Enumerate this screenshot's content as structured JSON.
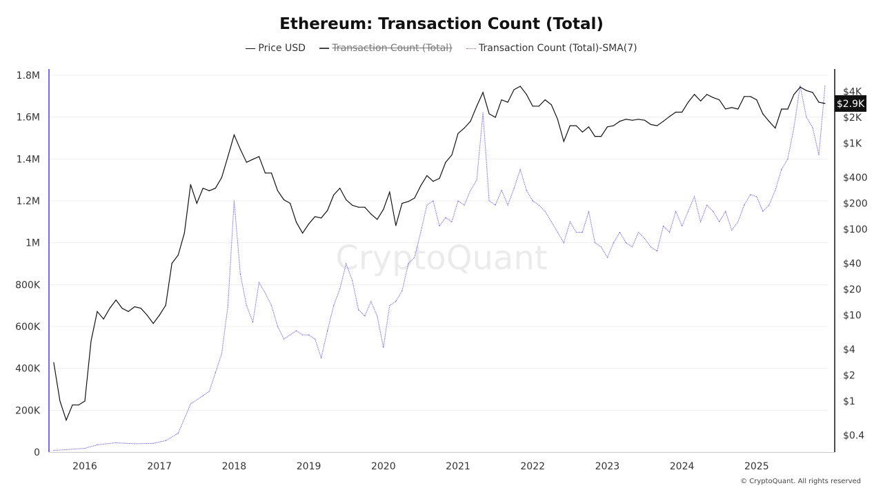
{
  "chart_data": {
    "type": "line",
    "title": "Ethereum: Transaction Count (Total)",
    "legend": {
      "placement": "top-center",
      "items": [
        {
          "label": "Price USD",
          "color": "#111111",
          "style": "solid",
          "hidden": false
        },
        {
          "label": "Transaction Count (Total)",
          "color": "#444444",
          "style": "solid",
          "hidden": true
        },
        {
          "label": "Transaction Count (Total)-SMA(7)",
          "color": "#7b68ee",
          "style": "dotted",
          "hidden": false
        }
      ]
    },
    "x_axis": {
      "type": "date",
      "range": [
        "2015-08",
        "2025-12"
      ],
      "ticks": [
        "2016",
        "2017",
        "2018",
        "2019",
        "2020",
        "2021",
        "2022",
        "2023",
        "2024",
        "2025"
      ]
    },
    "y_left": {
      "range": [
        0,
        1800000
      ],
      "ticks": [
        0,
        200000,
        400000,
        600000,
        800000,
        1000000,
        1200000,
        1400000,
        1600000,
        1800000
      ],
      "tick_labels": [
        "0",
        "200K",
        "400K",
        "600K",
        "800K",
        "1M",
        "1.2M",
        "1.4M",
        "1.6M",
        "1.8M"
      ],
      "grid": true
    },
    "y_right": {
      "scale": "log",
      "ticks": [
        0.4,
        1,
        2,
        4,
        10,
        20,
        40,
        100,
        200,
        400,
        1000,
        2000,
        4000
      ],
      "tick_labels": [
        "$0.4",
        "$1",
        "$2",
        "$4",
        "$10",
        "$20",
        "$40",
        "$100",
        "$200",
        "$400",
        "$1K",
        "$2K",
        "$4K"
      ]
    },
    "current_price_label": "$2.9K",
    "series": [
      {
        "name": "Price USD",
        "axis": "right",
        "color": "#111111",
        "points": [
          [
            "2015-08",
            2.8
          ],
          [
            "2015-09",
            1.0
          ],
          [
            "2015-10",
            0.6
          ],
          [
            "2015-11",
            0.9
          ],
          [
            "2015-12",
            0.9
          ],
          [
            "2016-01",
            1.0
          ],
          [
            "2016-02",
            5
          ],
          [
            "2016-03",
            11
          ],
          [
            "2016-04",
            9
          ],
          [
            "2016-05",
            12
          ],
          [
            "2016-06",
            15
          ],
          [
            "2016-07",
            12
          ],
          [
            "2016-08",
            11
          ],
          [
            "2016-09",
            12.5
          ],
          [
            "2016-10",
            12
          ],
          [
            "2016-11",
            10
          ],
          [
            "2016-12",
            8
          ],
          [
            "2017-01",
            10
          ],
          [
            "2017-02",
            13
          ],
          [
            "2017-03",
            40
          ],
          [
            "2017-04",
            50
          ],
          [
            "2017-05",
            90
          ],
          [
            "2017-06",
            330
          ],
          [
            "2017-07",
            200
          ],
          [
            "2017-08",
            300
          ],
          [
            "2017-09",
            280
          ],
          [
            "2017-10",
            300
          ],
          [
            "2017-11",
            400
          ],
          [
            "2017-12",
            700
          ],
          [
            "2018-01",
            1250
          ],
          [
            "2018-02",
            850
          ],
          [
            "2018-03",
            600
          ],
          [
            "2018-04",
            650
          ],
          [
            "2018-05",
            700
          ],
          [
            "2018-06",
            450
          ],
          [
            "2018-07",
            450
          ],
          [
            "2018-08",
            280
          ],
          [
            "2018-09",
            220
          ],
          [
            "2018-10",
            200
          ],
          [
            "2018-11",
            120
          ],
          [
            "2018-12",
            90
          ],
          [
            "2019-01",
            115
          ],
          [
            "2019-02",
            140
          ],
          [
            "2019-03",
            135
          ],
          [
            "2019-04",
            165
          ],
          [
            "2019-05",
            250
          ],
          [
            "2019-06",
            300
          ],
          [
            "2019-07",
            220
          ],
          [
            "2019-08",
            190
          ],
          [
            "2019-09",
            180
          ],
          [
            "2019-10",
            180
          ],
          [
            "2019-11",
            150
          ],
          [
            "2019-12",
            130
          ],
          [
            "2020-01",
            170
          ],
          [
            "2020-02",
            270
          ],
          [
            "2020-03",
            110
          ],
          [
            "2020-04",
            200
          ],
          [
            "2020-05",
            210
          ],
          [
            "2020-06",
            230
          ],
          [
            "2020-07",
            320
          ],
          [
            "2020-08",
            420
          ],
          [
            "2020-09",
            360
          ],
          [
            "2020-10",
            390
          ],
          [
            "2020-11",
            600
          ],
          [
            "2020-12",
            730
          ],
          [
            "2021-01",
            1300
          ],
          [
            "2021-02",
            1500
          ],
          [
            "2021-03",
            1800
          ],
          [
            "2021-04",
            2700
          ],
          [
            "2021-05",
            3900
          ],
          [
            "2021-06",
            2200
          ],
          [
            "2021-07",
            2000
          ],
          [
            "2021-08",
            3200
          ],
          [
            "2021-09",
            3000
          ],
          [
            "2021-10",
            4200
          ],
          [
            "2021-11",
            4600
          ],
          [
            "2021-12",
            3700
          ],
          [
            "2022-01",
            2700
          ],
          [
            "2022-02",
            2700
          ],
          [
            "2022-03",
            3200
          ],
          [
            "2022-04",
            2800
          ],
          [
            "2022-05",
            1900
          ],
          [
            "2022-06",
            1050
          ],
          [
            "2022-07",
            1600
          ],
          [
            "2022-08",
            1600
          ],
          [
            "2022-09",
            1350
          ],
          [
            "2022-10",
            1550
          ],
          [
            "2022-11",
            1200
          ],
          [
            "2022-12",
            1200
          ],
          [
            "2023-01",
            1550
          ],
          [
            "2023-02",
            1600
          ],
          [
            "2023-03",
            1800
          ],
          [
            "2023-04",
            1900
          ],
          [
            "2023-05",
            1850
          ],
          [
            "2023-06",
            1900
          ],
          [
            "2023-07",
            1850
          ],
          [
            "2023-08",
            1650
          ],
          [
            "2023-09",
            1600
          ],
          [
            "2023-10",
            1800
          ],
          [
            "2023-11",
            2050
          ],
          [
            "2023-12",
            2300
          ],
          [
            "2024-01",
            2300
          ],
          [
            "2024-02",
            3000
          ],
          [
            "2024-03",
            3700
          ],
          [
            "2024-04",
            3100
          ],
          [
            "2024-05",
            3700
          ],
          [
            "2024-06",
            3400
          ],
          [
            "2024-07",
            3200
          ],
          [
            "2024-08",
            2500
          ],
          [
            "2024-09",
            2600
          ],
          [
            "2024-10",
            2500
          ],
          [
            "2024-11",
            3500
          ],
          [
            "2024-12",
            3500
          ],
          [
            "2025-01",
            3200
          ],
          [
            "2025-02",
            2200
          ],
          [
            "2025-03",
            1800
          ],
          [
            "2025-04",
            1500
          ],
          [
            "2025-05",
            2500
          ],
          [
            "2025-06",
            2500
          ],
          [
            "2025-07",
            3700
          ],
          [
            "2025-08",
            4500
          ],
          [
            "2025-09",
            4100
          ],
          [
            "2025-10",
            3900
          ],
          [
            "2025-11",
            3000
          ],
          [
            "2025-12",
            2900
          ]
        ]
      },
      {
        "name": "Transaction Count (Total)-SMA(7)",
        "axis": "left",
        "color": "#7b68ee",
        "points": [
          [
            "2015-08",
            8000
          ],
          [
            "2015-10",
            12000
          ],
          [
            "2016-01",
            18000
          ],
          [
            "2016-03",
            35000
          ],
          [
            "2016-06",
            45000
          ],
          [
            "2016-09",
            40000
          ],
          [
            "2016-12",
            42000
          ],
          [
            "2017-02",
            55000
          ],
          [
            "2017-04",
            90000
          ],
          [
            "2017-06",
            230000
          ],
          [
            "2017-08",
            270000
          ],
          [
            "2017-09",
            290000
          ],
          [
            "2017-10",
            380000
          ],
          [
            "2017-11",
            470000
          ],
          [
            "2017-12",
            700000
          ],
          [
            "2018-01",
            1200000
          ],
          [
            "2018-02",
            850000
          ],
          [
            "2018-03",
            700000
          ],
          [
            "2018-04",
            620000
          ],
          [
            "2018-05",
            810000
          ],
          [
            "2018-06",
            760000
          ],
          [
            "2018-07",
            700000
          ],
          [
            "2018-08",
            600000
          ],
          [
            "2018-09",
            540000
          ],
          [
            "2018-10",
            560000
          ],
          [
            "2018-11",
            580000
          ],
          [
            "2018-12",
            560000
          ],
          [
            "2019-01",
            560000
          ],
          [
            "2019-02",
            540000
          ],
          [
            "2019-03",
            450000
          ],
          [
            "2019-04",
            580000
          ],
          [
            "2019-05",
            700000
          ],
          [
            "2019-06",
            780000
          ],
          [
            "2019-07",
            900000
          ],
          [
            "2019-08",
            820000
          ],
          [
            "2019-09",
            680000
          ],
          [
            "2019-10",
            650000
          ],
          [
            "2019-11",
            720000
          ],
          [
            "2019-12",
            650000
          ],
          [
            "2020-01",
            500000
          ],
          [
            "2020-02",
            700000
          ],
          [
            "2020-03",
            720000
          ],
          [
            "2020-04",
            770000
          ],
          [
            "2020-05",
            900000
          ],
          [
            "2020-06",
            930000
          ],
          [
            "2020-07",
            1050000
          ],
          [
            "2020-08",
            1180000
          ],
          [
            "2020-09",
            1200000
          ],
          [
            "2020-10",
            1080000
          ],
          [
            "2020-11",
            1120000
          ],
          [
            "2020-12",
            1100000
          ],
          [
            "2021-01",
            1200000
          ],
          [
            "2021-02",
            1180000
          ],
          [
            "2021-03",
            1250000
          ],
          [
            "2021-04",
            1300000
          ],
          [
            "2021-05",
            1620000
          ],
          [
            "2021-06",
            1200000
          ],
          [
            "2021-07",
            1180000
          ],
          [
            "2021-08",
            1250000
          ],
          [
            "2021-09",
            1180000
          ],
          [
            "2021-10",
            1260000
          ],
          [
            "2021-11",
            1350000
          ],
          [
            "2021-12",
            1250000
          ],
          [
            "2022-01",
            1200000
          ],
          [
            "2022-02",
            1180000
          ],
          [
            "2022-03",
            1150000
          ],
          [
            "2022-04",
            1100000
          ],
          [
            "2022-05",
            1050000
          ],
          [
            "2022-06",
            1000000
          ],
          [
            "2022-07",
            1100000
          ],
          [
            "2022-08",
            1050000
          ],
          [
            "2022-09",
            1050000
          ],
          [
            "2022-10",
            1150000
          ],
          [
            "2022-11",
            1000000
          ],
          [
            "2022-12",
            980000
          ],
          [
            "2023-01",
            930000
          ],
          [
            "2023-02",
            1000000
          ],
          [
            "2023-03",
            1050000
          ],
          [
            "2023-04",
            1000000
          ],
          [
            "2023-05",
            980000
          ],
          [
            "2023-06",
            1050000
          ],
          [
            "2023-07",
            1020000
          ],
          [
            "2023-08",
            980000
          ],
          [
            "2023-09",
            960000
          ],
          [
            "2023-10",
            1080000
          ],
          [
            "2023-11",
            1050000
          ],
          [
            "2023-12",
            1150000
          ],
          [
            "2024-01",
            1080000
          ],
          [
            "2024-02",
            1150000
          ],
          [
            "2024-03",
            1220000
          ],
          [
            "2024-04",
            1100000
          ],
          [
            "2024-05",
            1180000
          ],
          [
            "2024-06",
            1150000
          ],
          [
            "2024-07",
            1100000
          ],
          [
            "2024-08",
            1150000
          ],
          [
            "2024-09",
            1060000
          ],
          [
            "2024-10",
            1100000
          ],
          [
            "2024-11",
            1180000
          ],
          [
            "2024-12",
            1230000
          ],
          [
            "2025-01",
            1220000
          ],
          [
            "2025-02",
            1150000
          ],
          [
            "2025-03",
            1180000
          ],
          [
            "2025-04",
            1250000
          ],
          [
            "2025-05",
            1350000
          ],
          [
            "2025-06",
            1400000
          ],
          [
            "2025-07",
            1550000
          ],
          [
            "2025-08",
            1750000
          ],
          [
            "2025-09",
            1600000
          ],
          [
            "2025-10",
            1550000
          ],
          [
            "2025-11",
            1420000
          ],
          [
            "2025-12",
            1750000
          ]
        ]
      }
    ]
  },
  "watermark": "CryptoQuant",
  "footer": "© CryptoQuant. All rights reserved"
}
